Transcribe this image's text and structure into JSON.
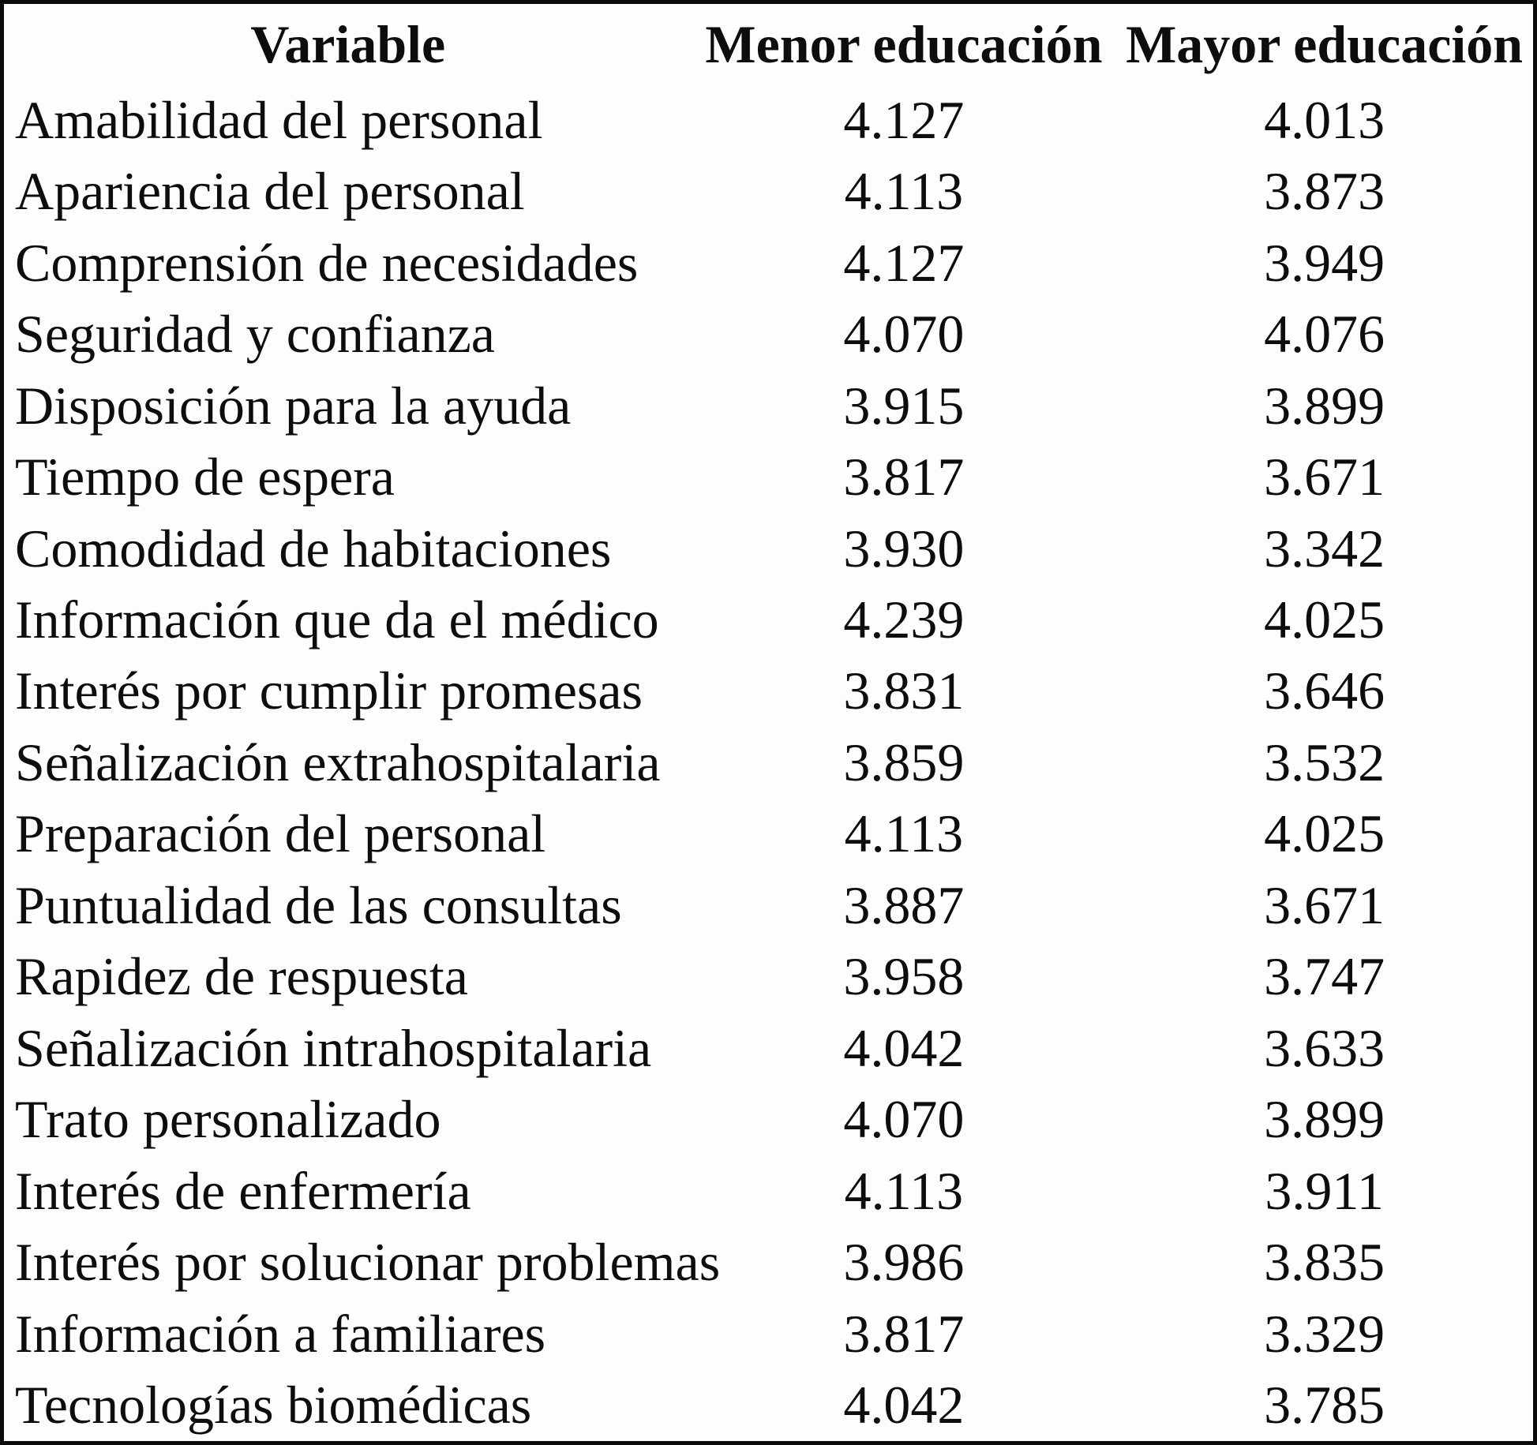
{
  "chart_data": {
    "type": "table",
    "columns": [
      "Variable",
      "Menor educación",
      "Mayor educación"
    ],
    "rows": [
      [
        "Amabilidad del personal",
        "4.127",
        "4.013"
      ],
      [
        "Apariencia del personal",
        "4.113",
        "3.873"
      ],
      [
        "Comprensión de necesidades",
        "4.127",
        "3.949"
      ],
      [
        "Seguridad y confianza",
        "4.070",
        "4.076"
      ],
      [
        "Disposición para la ayuda",
        "3.915",
        "3.899"
      ],
      [
        "Tiempo de espera",
        "3.817",
        "3.671"
      ],
      [
        "Comodidad de habitaciones",
        "3.930",
        "3.342"
      ],
      [
        "Información que da el médico",
        "4.239",
        "4.025"
      ],
      [
        "Interés por cumplir promesas",
        "3.831",
        "3.646"
      ],
      [
        "Señalización extrahospitalaria",
        "3.859",
        "3.532"
      ],
      [
        "Preparación del personal",
        "4.113",
        "4.025"
      ],
      [
        "Puntualidad de las consultas",
        "3.887",
        "3.671"
      ],
      [
        "Rapidez de respuesta",
        "3.958",
        "3.747"
      ],
      [
        "Señalización intrahospitalaria",
        "4.042",
        "3.633"
      ],
      [
        "Trato personalizado",
        "4.070",
        "3.899"
      ],
      [
        "Interés de enfermería",
        "4.113",
        "3.911"
      ],
      [
        "Interés por solucionar problemas",
        "3.986",
        "3.835"
      ],
      [
        "Información a familiares",
        "3.817",
        "3.329"
      ],
      [
        "Tecnologías biomédicas",
        "4.042",
        "3.785"
      ]
    ],
    "title": "",
    "layout": {
      "grid": false,
      "border": "outer-frame-only",
      "text_color": "#0d0d0d",
      "background_color": "#ffffff"
    }
  }
}
